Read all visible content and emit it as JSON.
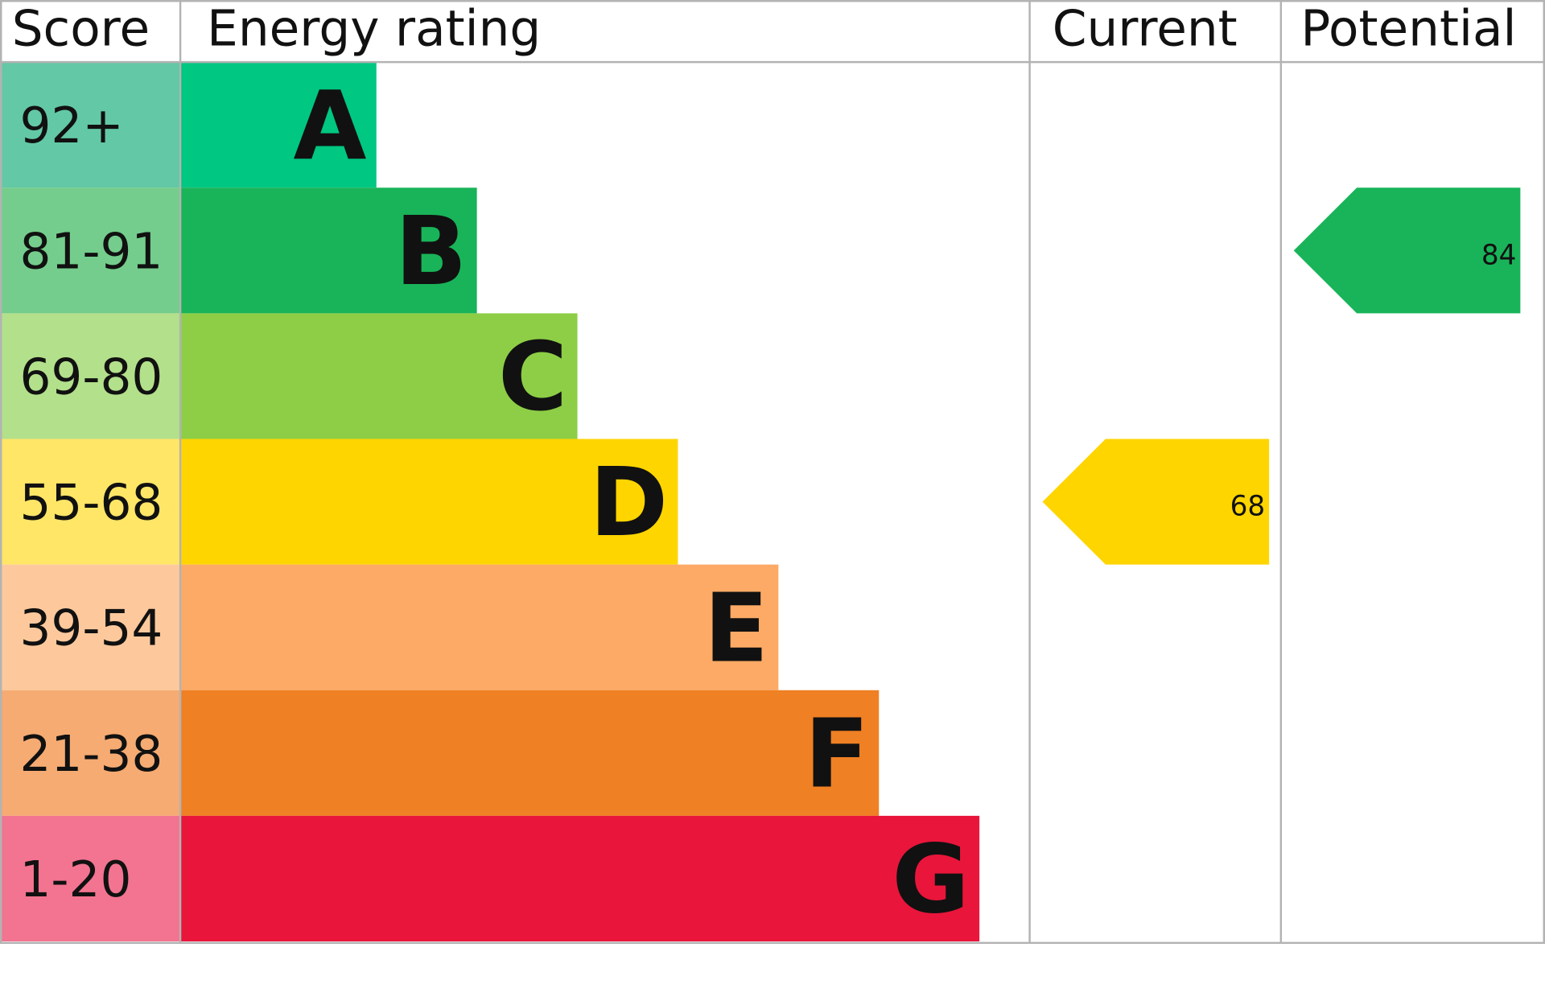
{
  "chart_data": {
    "type": "bar",
    "headers": {
      "score": "Score",
      "rating": "Energy rating",
      "current": "Current",
      "potential": "Potential"
    },
    "bands": [
      {
        "letter": "A",
        "range": "92+",
        "color": "#00c781",
        "score_color": "#63c8a5"
      },
      {
        "letter": "B",
        "range": "81-91",
        "color": "#19b459",
        "score_color": "#74cd8c"
      },
      {
        "letter": "C",
        "range": "69-80",
        "color": "#8dce46",
        "score_color": "#b3e08b"
      },
      {
        "letter": "D",
        "range": "55-68",
        "color": "#ffd500",
        "score_color": "#ffe666"
      },
      {
        "letter": "E",
        "range": "39-54",
        "color": "#fcaa65",
        "score_color": "#fdc99c"
      },
      {
        "letter": "F",
        "range": "21-38",
        "color": "#ef8023",
        "score_color": "#f5ab72"
      },
      {
        "letter": "G",
        "range": "1-20",
        "color": "#e9153b",
        "score_color": "#f27490"
      }
    ],
    "current": {
      "value": "68",
      "band": "D"
    },
    "potential": {
      "value": "84",
      "band": "B"
    }
  }
}
